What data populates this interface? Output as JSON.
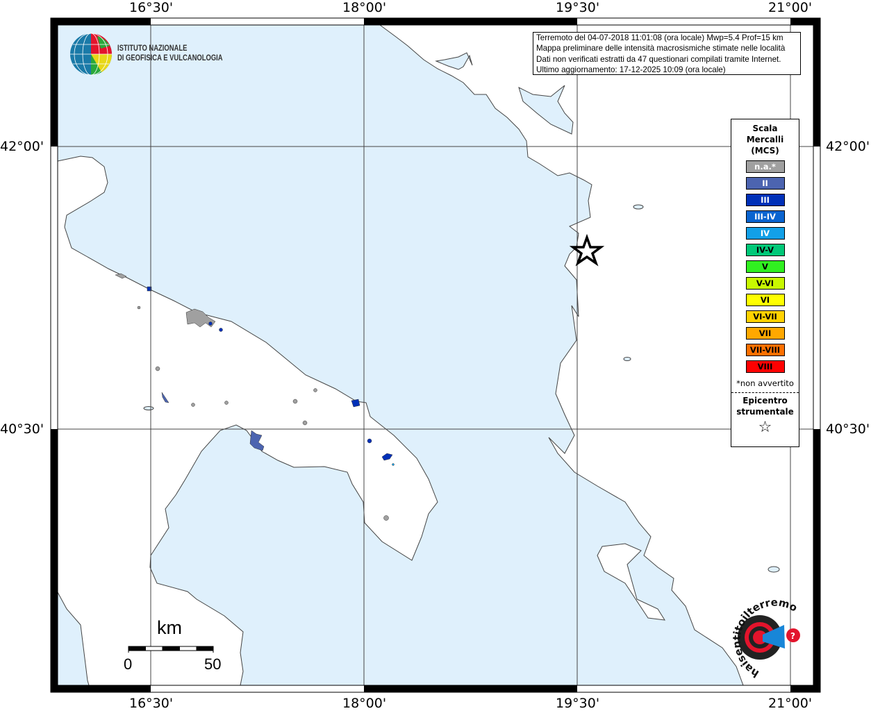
{
  "axes": {
    "longitude_labels": [
      "16°30'",
      "18°00'",
      "19°30'",
      "21°00'"
    ],
    "latitude_labels": [
      "42°00'",
      "40°30'"
    ]
  },
  "info_box": {
    "lines": [
      "Terremoto del 04-07-2018 11:01:08 (ora locale) Mwp=5.4 Prof=15 km",
      "Mappa preliminare delle intensità macrosismiche stimate nelle località",
      "Dati non verificati estratti da 47 questionari compilati tramite Internet.",
      "Ultimo aggiornamento: 17-12-2025 10:09 (ora locale)"
    ]
  },
  "legend": {
    "title_lines": [
      "Scala",
      "Mercalli",
      "(MCS)"
    ],
    "items": [
      {
        "label": "n.a.*",
        "color": "#a0a0a0",
        "text_color": "#ffffff"
      },
      {
        "label": "II",
        "color": "#4c64b0",
        "text_color": "#ffffff"
      },
      {
        "label": "III",
        "color": "#0030b8",
        "text_color": "#ffffff"
      },
      {
        "label": "III-IV",
        "color": "#0a64d0",
        "text_color": "#ffffff"
      },
      {
        "label": "IV",
        "color": "#12a0e8",
        "text_color": "#ffffff"
      },
      {
        "label": "IV-V",
        "color": "#00c878",
        "text_color": "#000000"
      },
      {
        "label": "V",
        "color": "#30f020",
        "text_color": "#000000"
      },
      {
        "label": "V-VI",
        "color": "#c8f800",
        "text_color": "#000000"
      },
      {
        "label": "VI",
        "color": "#ffff00",
        "text_color": "#000000"
      },
      {
        "label": "VI-VII",
        "color": "#ffd200",
        "text_color": "#000000"
      },
      {
        "label": "VII",
        "color": "#ffa800",
        "text_color": "#000000"
      },
      {
        "label": "VII-VIII",
        "color": "#ff7000",
        "text_color": "#000000"
      },
      {
        "label": "VIII",
        "color": "#ff0000",
        "text_color": "#000000"
      }
    ],
    "note": "*non avvertito",
    "epicenter_lines": [
      "Epicentro",
      "strumentale"
    ]
  },
  "scale_bar": {
    "unit": "km",
    "min_label": "0",
    "max_label": "50"
  },
  "logos": {
    "ingv": [
      "ISTITUTO NAZIONALE",
      "DI GEOFISICA E VULCANOLOGIA"
    ],
    "hsit": "www.haisentitoilterremoto.it"
  },
  "colors": {
    "sea": "#dff0fc",
    "land": "#ffffff",
    "coast": "#444444"
  }
}
